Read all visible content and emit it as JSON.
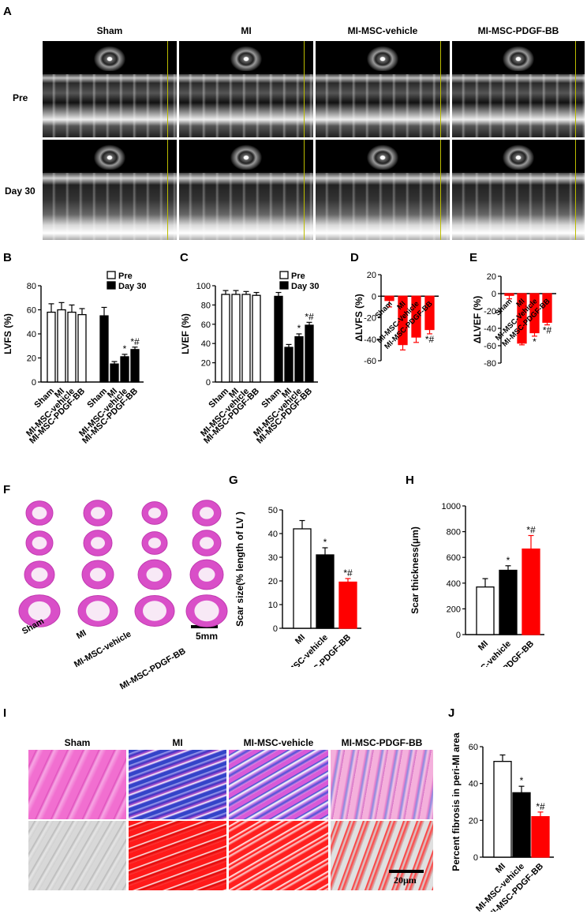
{
  "panel_labels": {
    "A": "A",
    "B": "B",
    "C": "C",
    "D": "D",
    "E": "E",
    "F": "F",
    "G": "G",
    "H": "H",
    "I": "I",
    "J": "J"
  },
  "panelA": {
    "columns": [
      "Sham",
      "MI",
      "MI-MSC-vehicle",
      "MI-MSC-PDGF-BB"
    ],
    "rows": [
      "Pre",
      "Day 30"
    ]
  },
  "panelF": {
    "groups": [
      "Sham",
      "MI",
      "MI-MSC-vehicle",
      "MI-MSC-PDGF-BB"
    ],
    "scale_bar": "5mm"
  },
  "panelI": {
    "columns": [
      "Sham",
      "MI",
      "MI-MSC-vehicle",
      "MI-MSC-PDGF-BB"
    ],
    "scale_bar": "20μm"
  },
  "chart_data": [
    {
      "id": "B",
      "type": "bar",
      "ylabel": "LVFS (%)",
      "ylim": [
        0,
        80
      ],
      "yticks": [
        0,
        20,
        40,
        60,
        80
      ],
      "categories": [
        "Sham",
        "MI",
        "MI-MSC-vehicle",
        "MI-MSC-PDGF-BB"
      ],
      "legend": [
        "Pre",
        "Day 30"
      ],
      "series": [
        {
          "name": "Pre",
          "fill": "#ffffff",
          "values": [
            58,
            60,
            58,
            56
          ],
          "errors": [
            7,
            6,
            6,
            5
          ]
        },
        {
          "name": "Day 30",
          "fill": "#000000",
          "values": [
            55,
            15,
            21,
            27
          ],
          "errors": [
            7,
            2,
            2,
            2
          ],
          "annotations": [
            "",
            "",
            "*",
            "*#"
          ]
        }
      ]
    },
    {
      "id": "C",
      "type": "bar",
      "ylabel": "LVEF (%)",
      "ylim": [
        0,
        100
      ],
      "yticks": [
        0,
        20,
        40,
        60,
        80,
        100
      ],
      "categories": [
        "Sham",
        "MI",
        "MI-MSC-vehicle",
        "MI-MSC-PDGF-BB"
      ],
      "legend": [
        "Pre",
        "Day 30"
      ],
      "series": [
        {
          "name": "Pre",
          "fill": "#ffffff",
          "values": [
            91,
            91,
            91,
            90
          ],
          "errors": [
            4,
            4,
            3,
            3
          ]
        },
        {
          "name": "Day 30",
          "fill": "#000000",
          "values": [
            89,
            36,
            47,
            59
          ],
          "errors": [
            4,
            3,
            3,
            3
          ],
          "annotations": [
            "",
            "",
            "*",
            "*#"
          ]
        }
      ]
    },
    {
      "id": "D",
      "type": "bar",
      "ylabel": "ΔLVFS (%)",
      "ylim": [
        -60,
        20
      ],
      "yticks": [
        20,
        0,
        -20,
        -40,
        -60
      ],
      "categories": [
        "Sham",
        "MI",
        "MI-MSC-Vehicle",
        "MI-MSC-PDGF-BB"
      ],
      "series": [
        {
          "fill": "#ff0000",
          "values": [
            -4,
            -45,
            -38,
            -31
          ],
          "errors": [
            6,
            5,
            5,
            4
          ],
          "annotations": [
            "",
            "",
            "",
            "*#"
          ]
        }
      ]
    },
    {
      "id": "E",
      "type": "bar",
      "ylabel": "ΔLVEF (%)",
      "ylim": [
        -80,
        20
      ],
      "yticks": [
        20,
        0,
        -20,
        -40,
        -60,
        -80
      ],
      "categories": [
        "Sham",
        "MI",
        "MI-MSC-Vehicle",
        "MI-MSC-PDGF-BB"
      ],
      "series": [
        {
          "fill": "#ff0000",
          "values": [
            -2,
            -57,
            -45,
            -33
          ],
          "errors": [
            4,
            2,
            4,
            3
          ],
          "annotations": [
            "",
            "",
            "*",
            "*#"
          ]
        }
      ]
    },
    {
      "id": "G",
      "type": "bar",
      "ylabel": "Scar size(% length of LV )",
      "ylim": [
        0,
        50
      ],
      "yticks": [
        0,
        10,
        20,
        30,
        40,
        50
      ],
      "categories": [
        "MI",
        "MI-MSC-vehicle",
        "MI-MSC-PDGF-BB"
      ],
      "series": [
        {
          "fills": [
            "#ffffff",
            "#000000",
            "#ff0000"
          ],
          "values": [
            42,
            31,
            19.5
          ],
          "errors": [
            3.5,
            3,
            1.5
          ],
          "annotations": [
            "",
            "*",
            "*#"
          ]
        }
      ]
    },
    {
      "id": "H",
      "type": "bar",
      "ylabel": "Scar thickness(μm)",
      "ylim": [
        0,
        1000
      ],
      "yticks": [
        0,
        200,
        400,
        600,
        800,
        1000
      ],
      "categories": [
        "MI",
        "MI-MSC-vehicle",
        "MI-MSC-PDGF-BB"
      ],
      "series": [
        {
          "fills": [
            "#ffffff",
            "#000000",
            "#ff0000"
          ],
          "values": [
            370,
            500,
            665
          ],
          "errors": [
            65,
            35,
            105
          ],
          "annotations": [
            "",
            "*",
            "*#"
          ]
        }
      ]
    },
    {
      "id": "J",
      "type": "bar",
      "ylabel": "Percent fibrosis in peri-MI area",
      "ylim": [
        0,
        60
      ],
      "yticks": [
        0,
        20,
        40,
        60
      ],
      "categories": [
        "MI",
        "MI-MSC-vehicle",
        "MI-MSC-PDGF-BB"
      ],
      "series": [
        {
          "fills": [
            "#ffffff",
            "#000000",
            "#ff0000"
          ],
          "values": [
            52,
            35,
            22
          ],
          "errors": [
            3.5,
            3.5,
            2.5
          ],
          "annotations": [
            "",
            "*",
            "*#"
          ]
        }
      ]
    }
  ]
}
